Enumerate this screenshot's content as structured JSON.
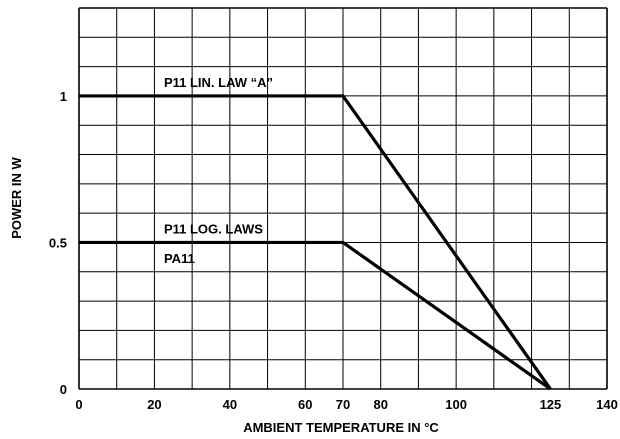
{
  "chart_data": {
    "type": "line",
    "title": "",
    "xlabel": "AMBIENT TEMPERATURE IN °C",
    "ylabel": "POWER IN W",
    "xlim": [
      0,
      140
    ],
    "ylim": [
      0,
      1.3
    ],
    "grid": true,
    "x_tick_labels": [
      {
        "x": 0,
        "label": "0"
      },
      {
        "x": 20,
        "label": "20"
      },
      {
        "x": 40,
        "label": "40"
      },
      {
        "x": 60,
        "label": "60"
      },
      {
        "x": 70,
        "label": "70"
      },
      {
        "x": 80,
        "label": "80"
      },
      {
        "x": 100,
        "label": "100"
      },
      {
        "x": 125,
        "label": "125"
      },
      {
        "x": 140,
        "label": "140"
      }
    ],
    "y_tick_labels": [
      {
        "y": 0,
        "label": "0"
      },
      {
        "y": 0.5,
        "label": "0.5"
      },
      {
        "y": 1,
        "label": "1"
      }
    ],
    "series": [
      {
        "x": [
          0,
          70,
          125
        ],
        "y": [
          1,
          1,
          0
        ]
      },
      {
        "x": [
          0,
          70,
          125
        ],
        "y": [
          0.5,
          0.5,
          0
        ]
      }
    ],
    "annotations": [
      {
        "text": "P11 LIN. LAW “A”",
        "x": 22,
        "y": 1.03
      },
      {
        "text": "P11 LOG. LAWS",
        "x": 22,
        "y": 0.53
      },
      {
        "text": "PA11",
        "x": 22,
        "y": 0.43
      }
    ]
  }
}
